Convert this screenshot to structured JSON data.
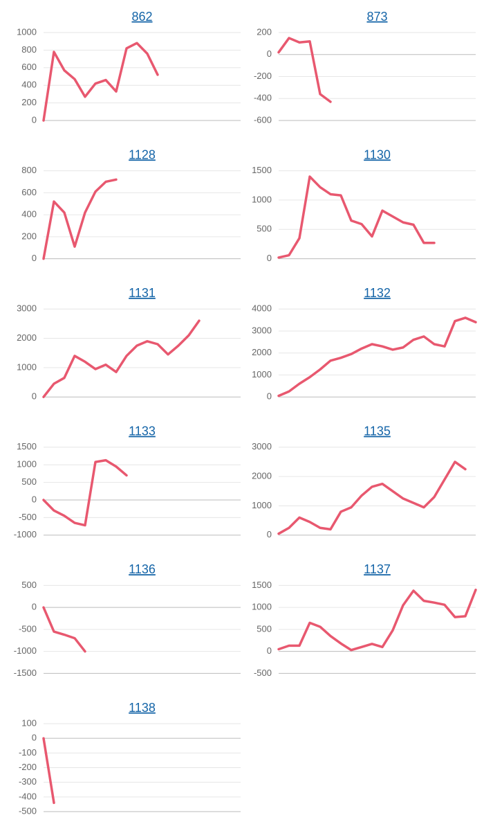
{
  "chart_data": [
    {
      "type": "line",
      "title": "862",
      "color": "#e8586f",
      "ylim": [
        0,
        1000
      ],
      "yticks": [
        0,
        200,
        400,
        600,
        800,
        1000
      ],
      "categories": [
        null,
        null,
        null,
        null,
        null,
        null,
        null,
        null,
        null,
        null,
        null,
        null,
        null,
        null,
        null,
        null,
        null,
        null,
        null,
        null
      ],
      "values": [
        0,
        780,
        570,
        470,
        270,
        420,
        460,
        330,
        820,
        880,
        760,
        520,
        null,
        null,
        null,
        null,
        null,
        null,
        null,
        null
      ]
    },
    {
      "type": "line",
      "title": "873",
      "color": "#e8586f",
      "ylim": [
        -600,
        200
      ],
      "yticks": [
        -600,
        -400,
        -200,
        0,
        200
      ],
      "categories": [
        null,
        null,
        null,
        null,
        null,
        null,
        null,
        null,
        null,
        null,
        null,
        null,
        null,
        null,
        null,
        null,
        null,
        null,
        null,
        null
      ],
      "values": [
        20,
        150,
        110,
        120,
        -360,
        -430,
        null,
        null,
        null,
        null,
        null,
        null,
        null,
        null,
        null,
        null,
        null,
        null,
        null,
        null
      ]
    },
    {
      "type": "line",
      "title": "1128",
      "color": "#e8586f",
      "ylim": [
        0,
        800
      ],
      "yticks": [
        0,
        200,
        400,
        600,
        800
      ],
      "categories": [
        null,
        null,
        null,
        null,
        null,
        null,
        null,
        null,
        null,
        null,
        null,
        null,
        null,
        null,
        null,
        null,
        null,
        null,
        null,
        null
      ],
      "values": [
        0,
        520,
        420,
        110,
        420,
        610,
        700,
        720,
        null,
        null,
        null,
        null,
        null,
        null,
        null,
        null,
        null,
        null,
        null,
        null
      ]
    },
    {
      "type": "line",
      "title": "1130",
      "color": "#e8586f",
      "ylim": [
        0,
        1500
      ],
      "yticks": [
        0,
        500,
        1000,
        1500
      ],
      "categories": [
        null,
        null,
        null,
        null,
        null,
        null,
        null,
        null,
        null,
        null,
        null,
        null,
        null,
        null,
        null,
        null,
        null,
        null,
        null,
        null
      ],
      "values": [
        20,
        60,
        350,
        1400,
        1220,
        1100,
        1080,
        650,
        590,
        380,
        820,
        720,
        620,
        580,
        270,
        270,
        null,
        null,
        null,
        null
      ]
    },
    {
      "type": "line",
      "title": "1131",
      "color": "#e8586f",
      "ylim": [
        0,
        3000
      ],
      "yticks": [
        0,
        1000,
        2000,
        3000
      ],
      "categories": [
        null,
        null,
        null,
        null,
        null,
        null,
        null,
        null,
        null,
        null,
        null,
        null,
        null,
        null,
        null,
        null,
        null,
        null,
        null,
        null
      ],
      "values": [
        0,
        450,
        650,
        1400,
        1200,
        950,
        1100,
        850,
        1400,
        1750,
        1900,
        1800,
        1450,
        1750,
        2100,
        2600,
        null,
        null,
        null,
        null
      ]
    },
    {
      "type": "line",
      "title": "1132",
      "color": "#e8586f",
      "ylim": [
        0,
        4000
      ],
      "yticks": [
        0,
        1000,
        2000,
        3000,
        4000
      ],
      "categories": [
        null,
        null,
        null,
        null,
        null,
        null,
        null,
        null,
        null,
        null,
        null,
        null,
        null,
        null,
        null,
        null,
        null,
        null,
        null,
        null
      ],
      "values": [
        50,
        250,
        600,
        900,
        1250,
        1650,
        1780,
        1950,
        2200,
        2400,
        2300,
        2150,
        2250,
        2600,
        2750,
        2400,
        2300,
        3450,
        3600,
        3400
      ]
    },
    {
      "type": "line",
      "title": "1133",
      "color": "#e8586f",
      "ylim": [
        -1000,
        1500
      ],
      "yticks": [
        -1000,
        -500,
        0,
        500,
        1000,
        1500
      ],
      "categories": [
        null,
        null,
        null,
        null,
        null,
        null,
        null,
        null,
        null,
        null,
        null,
        null,
        null,
        null,
        null,
        null,
        null,
        null,
        null,
        null
      ],
      "values": [
        0,
        -300,
        -450,
        -650,
        -720,
        1080,
        1130,
        950,
        700,
        null,
        null,
        null,
        null,
        null,
        null,
        null,
        null,
        null,
        null,
        null
      ]
    },
    {
      "type": "line",
      "title": "1135",
      "color": "#e8586f",
      "ylim": [
        0,
        3000
      ],
      "yticks": [
        0,
        1000,
        2000,
        3000
      ],
      "categories": [
        null,
        null,
        null,
        null,
        null,
        null,
        null,
        null,
        null,
        null,
        null,
        null,
        null,
        null,
        null,
        null,
        null,
        null,
        null,
        null
      ],
      "values": [
        50,
        250,
        600,
        450,
        250,
        200,
        800,
        950,
        1350,
        1650,
        1750,
        1500,
        1250,
        1100,
        950,
        1300,
        1900,
        2500,
        2250,
        null
      ]
    },
    {
      "type": "line",
      "title": "1136",
      "color": "#e8586f",
      "ylim": [
        -1500,
        500
      ],
      "yticks": [
        -1500,
        -1000,
        -500,
        0,
        500
      ],
      "categories": [
        null,
        null,
        null,
        null,
        null,
        null,
        null,
        null,
        null,
        null,
        null,
        null,
        null,
        null,
        null,
        null,
        null,
        null,
        null,
        null
      ],
      "values": [
        0,
        -550,
        -620,
        -700,
        -1000,
        null,
        null,
        null,
        null,
        null,
        null,
        null,
        null,
        null,
        null,
        null,
        null,
        null,
        null,
        null
      ]
    },
    {
      "type": "line",
      "title": "1137",
      "color": "#e8586f",
      "ylim": [
        -500,
        1500
      ],
      "yticks": [
        -500,
        0,
        500,
        1000,
        1500
      ],
      "categories": [
        null,
        null,
        null,
        null,
        null,
        null,
        null,
        null,
        null,
        null,
        null,
        null,
        null,
        null,
        null,
        null,
        null,
        null,
        null,
        null
      ],
      "values": [
        50,
        130,
        130,
        650,
        560,
        350,
        180,
        30,
        100,
        170,
        100,
        480,
        1050,
        1380,
        1150,
        1110,
        1060,
        780,
        800,
        1400
      ]
    },
    {
      "type": "line",
      "title": "1138",
      "color": "#e8586f",
      "ylim": [
        -500,
        100
      ],
      "yticks": [
        -500,
        -400,
        -300,
        -200,
        -100,
        0,
        100
      ],
      "categories": [
        null,
        null,
        null,
        null,
        null,
        null,
        null,
        null,
        null,
        null,
        null,
        null,
        null,
        null,
        null,
        null,
        null,
        null,
        null,
        null
      ],
      "values": [
        0,
        -440,
        null,
        null,
        null,
        null,
        null,
        null,
        null,
        null,
        null,
        null,
        null,
        null,
        null,
        null,
        null,
        null,
        null,
        null
      ]
    }
  ]
}
